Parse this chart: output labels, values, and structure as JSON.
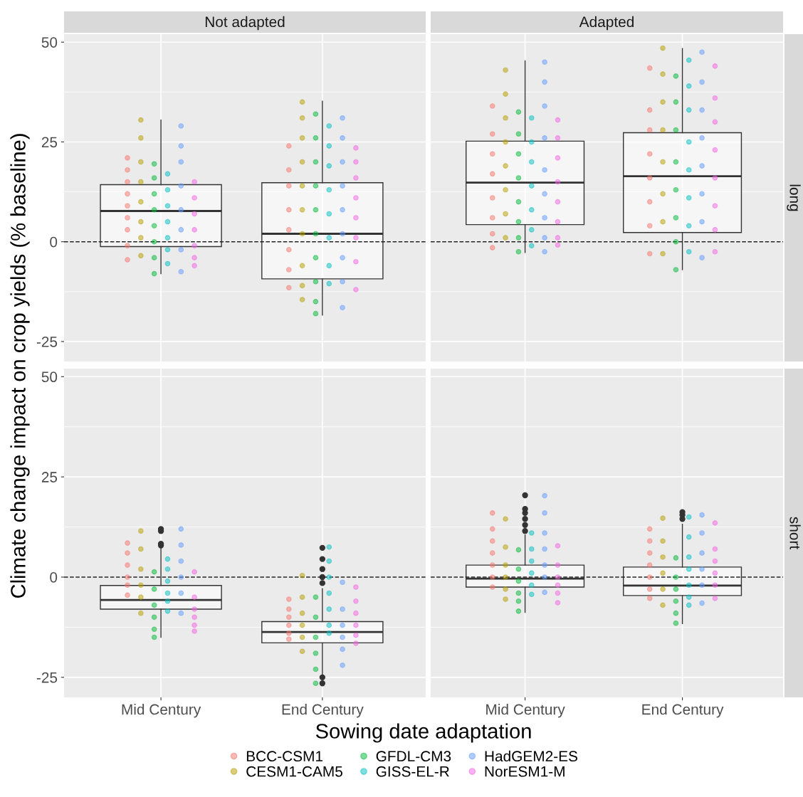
{
  "chart_data": [
    {
      "type": "box",
      "title": "Not adapted",
      "ylabel": "Climate change impact on crop yields (% baseline)",
      "categories": [
        "Mid Century",
        "End Century"
      ],
      "ylim": [
        -30,
        52
      ],
      "yticks": [
        -25,
        0,
        25,
        50
      ],
      "grid": true,
      "tick_labels": "y",
      "legend": "bottom",
      "marker": "circle",
      "ref_lines": [
        {
          "axis": "y",
          "value": 0,
          "line_style": "dashed"
        }
      ],
      "boxes": [
        {
          "low": -8,
          "q1": -1.2,
          "median": 7.7,
          "q3": 14.3,
          "high": 30.5
        },
        {
          "low": -18.4,
          "q1": -9.3,
          "median": 2,
          "q3": 14.8,
          "high": 35.2
        }
      ],
      "series": [
        {
          "type": "scatter",
          "name": "BCC-CSM1",
          "color": "#f8766d",
          "x": [
            "Mid Century",
            "Mid Century",
            "Mid Century",
            "Mid Century",
            "Mid Century",
            "Mid Century",
            "Mid Century",
            "Mid Century",
            "Mid Century",
            "End Century",
            "End Century",
            "End Century",
            "End Century",
            "End Century",
            "End Century",
            "End Century",
            "End Century"
          ],
          "values": [
            21,
            18,
            15,
            12,
            9,
            6,
            3,
            -1,
            -4.5,
            24,
            18,
            14,
            8,
            3,
            -2,
            -7,
            -11.5
          ]
        },
        {
          "type": "scatter",
          "name": "CESM1-CAM5",
          "color": "#b79f00",
          "x": [
            "Mid Century",
            "Mid Century",
            "Mid Century",
            "Mid Century",
            "Mid Century",
            "Mid Century",
            "Mid Century",
            "Mid Century",
            "End Century",
            "End Century",
            "End Century",
            "End Century",
            "End Century",
            "End Century",
            "End Century",
            "End Century",
            "End Century",
            "End Century"
          ],
          "values": [
            30.5,
            26,
            20,
            15,
            10,
            5,
            1,
            -3.5,
            35,
            31,
            26,
            20,
            14,
            8,
            2,
            -6,
            -11,
            -14.5
          ]
        },
        {
          "type": "scatter",
          "name": "GFDL-CM3",
          "color": "#00ba38",
          "x": [
            "Mid Century",
            "Mid Century",
            "Mid Century",
            "Mid Century",
            "Mid Century",
            "Mid Century",
            "Mid Century",
            "Mid Century",
            "End Century",
            "End Century",
            "End Century",
            "End Century",
            "End Century",
            "End Century",
            "End Century",
            "End Century",
            "End Century",
            "End Century"
          ],
          "values": [
            19.5,
            16,
            12,
            8,
            4,
            0,
            -4,
            -8,
            32,
            26,
            20,
            14,
            8,
            2,
            -4,
            -10,
            -15,
            -18
          ]
        },
        {
          "type": "scatter",
          "name": "GISS-EL-R",
          "color": "#00bfc4",
          "x": [
            "Mid Century",
            "Mid Century",
            "Mid Century",
            "Mid Century",
            "Mid Century",
            "Mid Century",
            "Mid Century",
            "End Century",
            "End Century",
            "End Century",
            "End Century",
            "End Century",
            "End Century",
            "End Century",
            "End Century"
          ],
          "values": [
            17,
            13,
            9,
            5,
            1,
            -2,
            -5.5,
            29,
            24,
            19,
            13,
            7,
            1,
            -6,
            -10.5
          ]
        },
        {
          "type": "scatter",
          "name": "HadGEM2-ES",
          "color": "#619cff",
          "x": [
            "Mid Century",
            "Mid Century",
            "Mid Century",
            "Mid Century",
            "Mid Century",
            "Mid Century",
            "Mid Century",
            "Mid Century",
            "End Century",
            "End Century",
            "End Century",
            "End Century",
            "End Century",
            "End Century",
            "End Century",
            "End Century",
            "End Century"
          ],
          "values": [
            29,
            24,
            20,
            14,
            8,
            3,
            -2,
            -7.5,
            31,
            26,
            20,
            14,
            8,
            2,
            -4,
            -10,
            -16.5
          ]
        },
        {
          "type": "scatter",
          "name": "NorESM1-M",
          "color": "#f564e3",
          "x": [
            "Mid Century",
            "Mid Century",
            "Mid Century",
            "Mid Century",
            "Mid Century",
            "Mid Century",
            "Mid Century",
            "End Century",
            "End Century",
            "End Century",
            "End Century",
            "End Century",
            "End Century",
            "End Century",
            "End Century"
          ],
          "values": [
            15,
            11,
            7,
            3,
            -1,
            -4,
            -6,
            23.5,
            20,
            16,
            11,
            6,
            1,
            -5,
            -12
          ]
        }
      ]
    },
    {
      "type": "box",
      "title": "Adapted",
      "y2label": "long",
      "categories": [
        "Mid Century",
        "End Century"
      ],
      "ylim": [
        -30,
        52
      ],
      "yticks": [
        -25,
        0,
        25,
        50
      ],
      "grid": true,
      "tick_labels": false,
      "marker": "circle",
      "ref_lines": [
        {
          "axis": "y",
          "value": 0,
          "line_style": "dashed"
        }
      ],
      "boxes": [
        {
          "low": -2.7,
          "q1": 4.3,
          "median": 14.8,
          "q3": 25.2,
          "high": 45.3
        },
        {
          "low": -7,
          "q1": 2.3,
          "median": 16.4,
          "q3": 27.3,
          "high": 48.4
        }
      ],
      "series": [
        {
          "type": "scatter",
          "color": "#f8766d",
          "x": [
            "Mid Century",
            "Mid Century",
            "Mid Century",
            "Mid Century",
            "Mid Century",
            "Mid Century",
            "Mid Century",
            "Mid Century",
            "End Century",
            "End Century",
            "End Century",
            "End Century",
            "End Century",
            "End Century",
            "End Century",
            "End Century"
          ],
          "values": [
            34,
            27,
            22,
            17,
            11,
            6,
            2,
            -1.5,
            43.5,
            33,
            28,
            22,
            16,
            10,
            4,
            -3
          ]
        },
        {
          "type": "scatter",
          "color": "#b79f00",
          "x": [
            "Mid Century",
            "Mid Century",
            "Mid Century",
            "Mid Century",
            "Mid Century",
            "Mid Century",
            "Mid Century",
            "Mid Century",
            "End Century",
            "End Century",
            "End Century",
            "End Century",
            "End Century",
            "End Century",
            "End Century",
            "End Century"
          ],
          "values": [
            43,
            37,
            31,
            25,
            19,
            13,
            7,
            1,
            48.5,
            42,
            35,
            28,
            20,
            12,
            5,
            -3
          ]
        },
        {
          "type": "scatter",
          "color": "#00ba38",
          "x": [
            "Mid Century",
            "Mid Century",
            "Mid Century",
            "Mid Century",
            "Mid Century",
            "Mid Century",
            "Mid Century",
            "Mid Century",
            "End Century",
            "End Century",
            "End Century",
            "End Century",
            "End Century",
            "End Century",
            "End Century",
            "End Century"
          ],
          "values": [
            32.5,
            27,
            22,
            16,
            10,
            5,
            1,
            -2.5,
            41.5,
            35,
            28,
            20,
            13,
            6,
            0,
            -7
          ]
        },
        {
          "type": "scatter",
          "color": "#00bfc4",
          "x": [
            "Mid Century",
            "Mid Century",
            "Mid Century",
            "Mid Century",
            "Mid Century",
            "Mid Century",
            "Mid Century",
            "End Century",
            "End Century",
            "End Century",
            "End Century",
            "End Century",
            "End Century",
            "End Century",
            "End Century"
          ],
          "values": [
            31,
            25,
            20,
            14,
            8,
            3,
            -1,
            45.5,
            39,
            33,
            25,
            18,
            11,
            4,
            -2.5
          ]
        },
        {
          "type": "scatter",
          "color": "#619cff",
          "x": [
            "Mid Century",
            "Mid Century",
            "Mid Century",
            "Mid Century",
            "Mid Century",
            "Mid Century",
            "Mid Century",
            "Mid Century",
            "Mid Century",
            "End Century",
            "End Century",
            "End Century",
            "End Century",
            "End Century",
            "End Century",
            "End Century",
            "End Century"
          ],
          "values": [
            45,
            40,
            34,
            26,
            18,
            12,
            6,
            1,
            -2.5,
            47.5,
            40,
            33,
            26,
            19,
            12,
            5,
            -4
          ]
        },
        {
          "type": "scatter",
          "color": "#f564e3",
          "x": [
            "Mid Century",
            "Mid Century",
            "Mid Century",
            "Mid Century",
            "Mid Century",
            "Mid Century",
            "Mid Century",
            "Mid Century",
            "End Century",
            "End Century",
            "End Century",
            "End Century",
            "End Century",
            "End Century",
            "End Century",
            "End Century"
          ],
          "values": [
            30.5,
            26,
            21,
            15,
            10,
            5,
            1,
            -0.8,
            44,
            36,
            30,
            23,
            16,
            9,
            3,
            -2.5
          ]
        }
      ]
    },
    {
      "type": "box",
      "xlabel": "Sowing date adaptation",
      "categories": [
        "Mid Century",
        "End Century"
      ],
      "ylim": [
        -30,
        52
      ],
      "yticks": [
        -25,
        0,
        25,
        50
      ],
      "grid": true,
      "marker": "circle",
      "ref_lines": [
        {
          "axis": "y",
          "value": 0,
          "line_style": "dashed"
        }
      ],
      "boxes": [
        {
          "low": -15,
          "q1": -8,
          "median": -5.7,
          "q3": -2.1,
          "high": 7.5,
          "outliers": [
            7.9,
            8.3,
            11.5,
            12
          ]
        },
        {
          "low": -24.3,
          "q1": -16.4,
          "median": -13.7,
          "q3": -11.1,
          "high": -2.9,
          "outliers": [
            7.3,
            4.5,
            2,
            0,
            -1.5,
            -25,
            -26.5
          ]
        }
      ],
      "series": [
        {
          "type": "scatter",
          "color": "#f8766d",
          "x": [
            "Mid Century",
            "Mid Century",
            "Mid Century",
            "Mid Century",
            "Mid Century",
            "Mid Century",
            "End Century",
            "End Century",
            "End Century",
            "End Century",
            "End Century",
            "End Century"
          ],
          "values": [
            8.5,
            6,
            3,
            0,
            -2,
            -4.5,
            -5.5,
            -8,
            -10,
            -12,
            -14,
            -15.5
          ]
        },
        {
          "type": "scatter",
          "color": "#b79f00",
          "x": [
            "Mid Century",
            "Mid Century",
            "Mid Century",
            "Mid Century",
            "Mid Century",
            "Mid Century",
            "End Century",
            "End Century",
            "End Century",
            "End Century",
            "End Century",
            "End Century"
          ],
          "values": [
            11.5,
            7,
            2,
            -2,
            -5,
            -9,
            0.4,
            -5,
            -9,
            -12,
            -15,
            -18.5
          ]
        },
        {
          "type": "scatter",
          "color": "#00ba38",
          "x": [
            "Mid Century",
            "Mid Century",
            "Mid Century",
            "Mid Century",
            "Mid Century",
            "Mid Century",
            "End Century",
            "End Century",
            "End Century",
            "End Century",
            "End Century",
            "End Century"
          ],
          "values": [
            1.3,
            -3,
            -7,
            -10,
            -13,
            -15,
            -5,
            -10,
            -15,
            -19,
            -23,
            -26.5
          ]
        },
        {
          "type": "scatter",
          "color": "#00bfc4",
          "x": [
            "Mid Century",
            "Mid Century",
            "Mid Century",
            "Mid Century",
            "Mid Century",
            "Mid Century",
            "End Century",
            "End Century",
            "End Century",
            "End Century",
            "End Century",
            "End Century",
            "End Century"
          ],
          "values": [
            4.5,
            2,
            -1,
            -4,
            -6,
            -8.5,
            7.5,
            4,
            0,
            -4,
            -8,
            -12,
            -14
          ]
        },
        {
          "type": "scatter",
          "color": "#619cff",
          "x": [
            "Mid Century",
            "Mid Century",
            "Mid Century",
            "Mid Century",
            "Mid Century",
            "Mid Century",
            "End Century",
            "End Century",
            "End Century",
            "End Century",
            "End Century",
            "End Century"
          ],
          "values": [
            12,
            8,
            4,
            0,
            -4,
            -9,
            -1.3,
            -8,
            -12,
            -15,
            -18,
            -22
          ]
        },
        {
          "type": "scatter",
          "color": "#f564e3",
          "x": [
            "Mid Century",
            "Mid Century",
            "Mid Century",
            "Mid Century",
            "Mid Century",
            "Mid Century",
            "End Century",
            "End Century",
            "End Century",
            "End Century",
            "End Century",
            "End Century"
          ],
          "values": [
            1.3,
            -5,
            -8,
            -10,
            -12,
            -13.5,
            -2.5,
            -6,
            -9,
            -12,
            -14.5,
            -16.5
          ]
        }
      ]
    },
    {
      "type": "box",
      "y2label": "short",
      "categories": [
        "Mid Century",
        "End Century"
      ],
      "ylim": [
        -30,
        52
      ],
      "yticks": [
        -25,
        0,
        25,
        50
      ],
      "grid": true,
      "tick_labels": "x",
      "marker": "circle",
      "ref_lines": [
        {
          "axis": "y",
          "value": 0,
          "line_style": "dashed"
        }
      ],
      "boxes": [
        {
          "low": -8.8,
          "q1": -2.5,
          "median": -0.4,
          "q3": 3,
          "high": 10.5,
          "outliers": [
            11.5,
            13,
            14.5,
            16,
            17,
            20.4
          ]
        },
        {
          "low": -11.6,
          "q1": -4.6,
          "median": -2.1,
          "q3": 2.5,
          "high": 13.2,
          "outliers": [
            14.5,
            15.5,
            16.2
          ]
        }
      ],
      "series": [
        {
          "type": "scatter",
          "color": "#f8766d",
          "x": [
            "Mid Century",
            "Mid Century",
            "Mid Century",
            "Mid Century",
            "Mid Century",
            "Mid Century",
            "Mid Century",
            "End Century",
            "End Century",
            "End Century",
            "End Century",
            "End Century",
            "End Century",
            "End Century"
          ],
          "values": [
            16,
            12,
            9,
            6,
            3,
            0,
            -2.5,
            12,
            9,
            6,
            3,
            0,
            -3,
            -5.3
          ]
        },
        {
          "type": "scatter",
          "color": "#b79f00",
          "x": [
            "Mid Century",
            "Mid Century",
            "Mid Century",
            "Mid Century",
            "Mid Century",
            "Mid Century",
            "End Century",
            "End Century",
            "End Century",
            "End Century",
            "End Century",
            "End Century"
          ],
          "values": [
            14.5,
            7.5,
            3,
            0,
            -3,
            -5.5,
            14.7,
            9,
            5,
            1,
            -3,
            -7
          ]
        },
        {
          "type": "scatter",
          "color": "#00ba38",
          "x": [
            "Mid Century",
            "Mid Century",
            "Mid Century",
            "Mid Century",
            "Mid Century",
            "Mid Century",
            "End Century",
            "End Century",
            "End Century",
            "End Century",
            "End Century",
            "End Century"
          ],
          "values": [
            6.8,
            2,
            -1,
            -4,
            -6,
            -8.5,
            4.8,
            0,
            -3,
            -6,
            -9,
            -11.5
          ]
        },
        {
          "type": "scatter",
          "color": "#00bfc4",
          "x": [
            "Mid Century",
            "Mid Century",
            "Mid Century",
            "Mid Century",
            "Mid Century",
            "Mid Century",
            "End Century",
            "End Century",
            "End Century",
            "End Century",
            "End Century",
            "End Century",
            "End Century"
          ],
          "values": [
            11,
            7,
            4,
            1,
            -2,
            -4.3,
            15,
            10,
            5,
            2,
            -2,
            -5,
            -7
          ]
        },
        {
          "type": "scatter",
          "color": "#619cff",
          "x": [
            "Mid Century",
            "Mid Century",
            "Mid Century",
            "Mid Century",
            "Mid Century",
            "Mid Century",
            "Mid Century",
            "End Century",
            "End Century",
            "End Century",
            "End Century",
            "End Century",
            "End Century"
          ],
          "values": [
            20.3,
            16,
            11,
            7,
            3,
            0,
            -3.8,
            15.5,
            11,
            6,
            2,
            -2,
            -6.5
          ]
        },
        {
          "type": "scatter",
          "color": "#f564e3",
          "x": [
            "Mid Century",
            "Mid Century",
            "Mid Century",
            "Mid Century",
            "Mid Century",
            "Mid Century",
            "End Century",
            "End Century",
            "End Century",
            "End Century",
            "End Century",
            "End Century"
          ],
          "values": [
            7.8,
            3,
            0,
            -2,
            -4,
            -6.4,
            13.5,
            7,
            4,
            1,
            -2,
            -5.3
          ]
        }
      ]
    }
  ]
}
